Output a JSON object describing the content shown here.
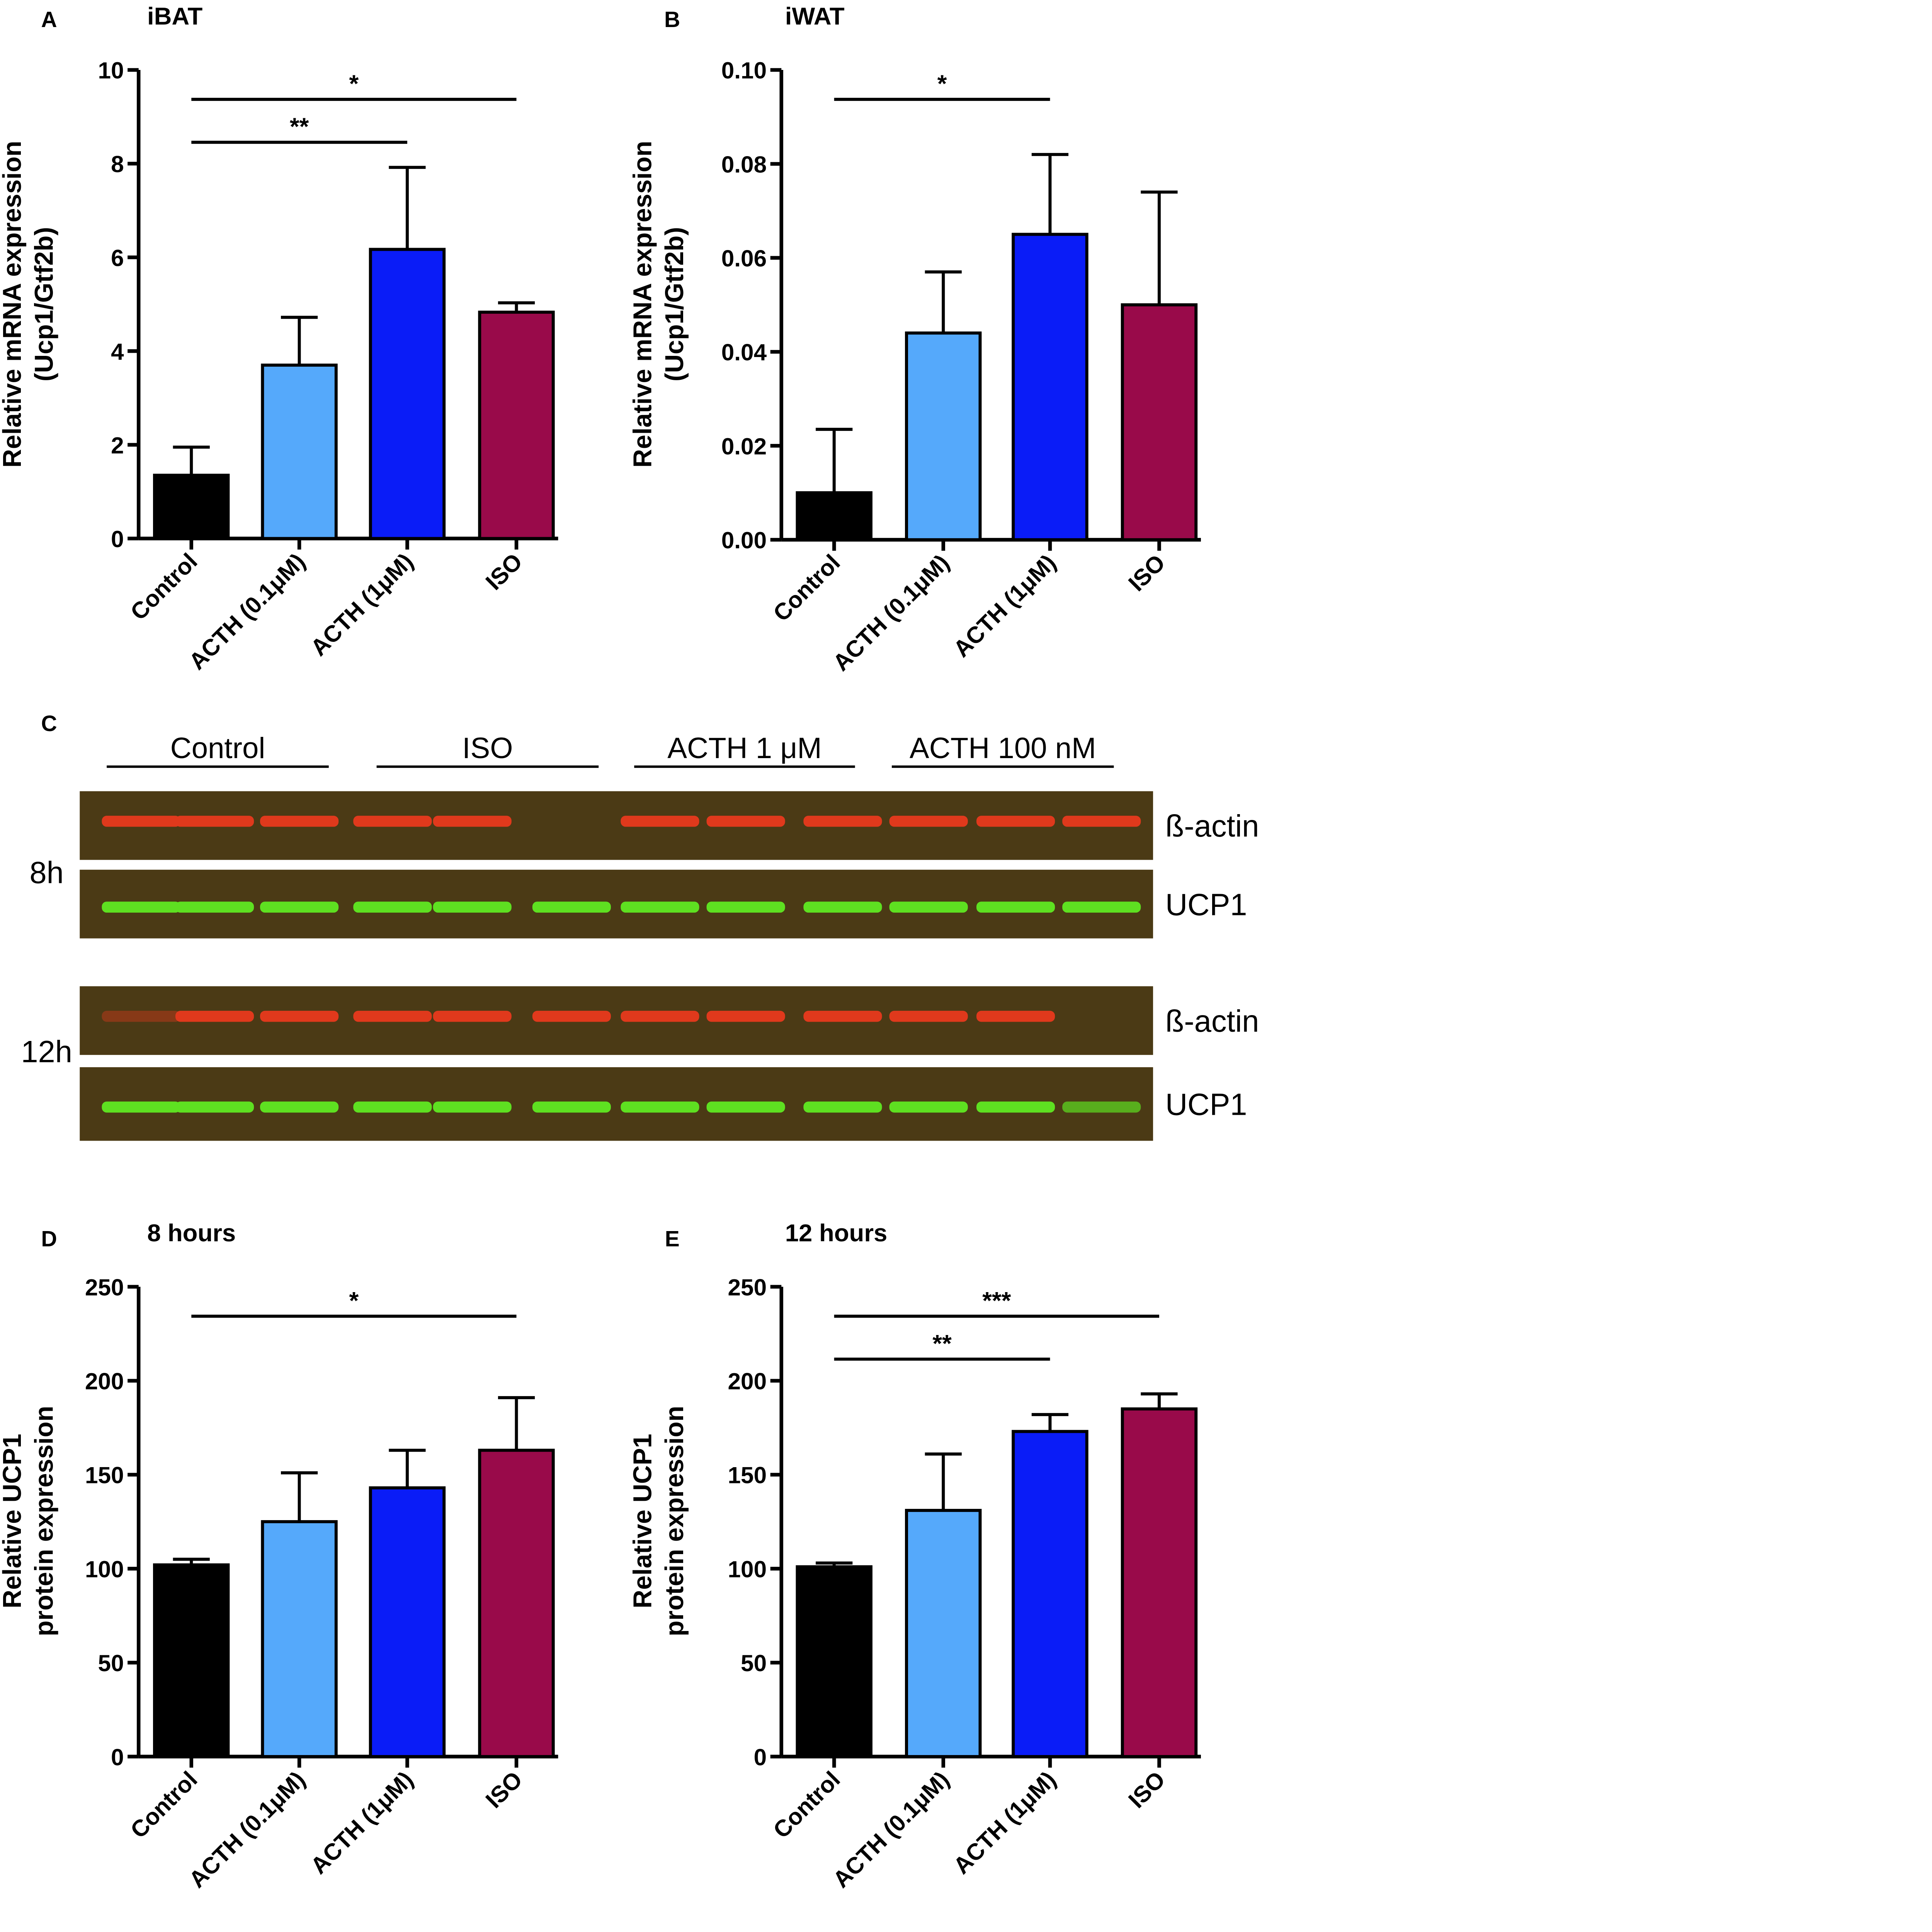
{
  "figure": {
    "panel_labels": [
      "A",
      "B",
      "C",
      "D",
      "E"
    ]
  },
  "colors": {
    "control": "#000000",
    "acth_low": "#55a9fb",
    "acth_high": "#0a1cf7",
    "iso": "#990a4a",
    "blot_red": "#e0391c",
    "blot_green": "#5ee021",
    "blot_bg": "#4b3a15"
  },
  "chart_data": [
    {
      "panel": "A",
      "type": "bar",
      "title": "iBAT",
      "xlabel": "",
      "ylabel": [
        "Relative mRNA expression",
        "(Ucp1/Gtf2b)"
      ],
      "categories": [
        "Control",
        "ACTH (0.1μM)",
        "ACTH (1μM)",
        "ISO"
      ],
      "values": [
        1.35,
        3.7,
        6.17,
        4.83
      ],
      "errors": [
        0.6,
        1.02,
        1.75,
        0.2
      ],
      "ylim": [
        0,
        10
      ],
      "yticks": [
        "0",
        "2",
        "4",
        "6",
        "8",
        "10"
      ],
      "significance": [
        {
          "from": 0,
          "to": 2,
          "label": "**"
        },
        {
          "from": 0,
          "to": 3,
          "label": "*"
        }
      ]
    },
    {
      "panel": "B",
      "type": "bar",
      "title": "iWAT",
      "xlabel": "",
      "ylabel": [
        "Relative mRNA expression",
        "(Ucp1/Gtf2b)"
      ],
      "categories": [
        "Control",
        "ACTH (0.1μM)",
        "ACTH (1μM)",
        "ISO"
      ],
      "values": [
        0.01,
        0.044,
        0.065,
        0.05
      ],
      "errors": [
        0.0135,
        0.013,
        0.017,
        0.024
      ],
      "ylim": [
        0,
        0.1
      ],
      "yticks": [
        "0.00",
        "0.02",
        "0.04",
        "0.06",
        "0.08",
        "0.10"
      ],
      "significance": [
        {
          "from": 0,
          "to": 2,
          "label": "*"
        }
      ]
    },
    {
      "panel": "D",
      "type": "bar",
      "title": "8 hours",
      "xlabel": "",
      "ylabel": [
        "Relative UCP1",
        "protein expression"
      ],
      "categories": [
        "Control",
        "ACTH (0.1μM)",
        "ACTH (1μM)",
        "ISO"
      ],
      "values": [
        102,
        125,
        143,
        163
      ],
      "errors": [
        3,
        26,
        20,
        28
      ],
      "ylim": [
        0,
        250
      ],
      "yticks": [
        "0",
        "50",
        "100",
        "150",
        "200",
        "250"
      ],
      "significance": [
        {
          "from": 0,
          "to": 3,
          "label": "*"
        }
      ]
    },
    {
      "panel": "E",
      "type": "bar",
      "title": "12 hours",
      "xlabel": "",
      "ylabel": [
        "Relative UCP1",
        "protein expression"
      ],
      "categories": [
        "Control",
        "ACTH (0.1μM)",
        "ACTH (1μM)",
        "ISO"
      ],
      "values": [
        101,
        131,
        173,
        185
      ],
      "errors": [
        2,
        30,
        9,
        8
      ],
      "ylim": [
        0,
        250
      ],
      "yticks": [
        "0",
        "50",
        "100",
        "150",
        "200",
        "250"
      ],
      "significance": [
        {
          "from": 0,
          "to": 2,
          "label": "**"
        },
        {
          "from": 0,
          "to": 3,
          "label": "***"
        }
      ]
    }
  ],
  "blot": {
    "groups": [
      "Control",
      "ISO",
      "ACTH 1 μM",
      "ACTH 100 nM"
    ],
    "timepoints": [
      {
        "label": "8h",
        "rows": [
          {
            "name": "ß-actin",
            "color": "red",
            "bands": [
              1,
              1,
              1,
              1,
              1,
              0,
              1,
              1,
              1,
              1,
              1,
              1
            ]
          },
          {
            "name": "UCP1",
            "color": "green",
            "bands": [
              1,
              1,
              1,
              1,
              1,
              1,
              1,
              1,
              1,
              1,
              1,
              1
            ]
          }
        ]
      },
      {
        "label": "12h",
        "rows": [
          {
            "name": "ß-actin",
            "color": "red",
            "bands": [
              0.2,
              1,
              1,
              1,
              1,
              1,
              1,
              1,
              1,
              1,
              1,
              0
            ]
          },
          {
            "name": "UCP1",
            "color": "green",
            "bands": [
              1,
              1,
              1,
              1,
              1,
              1,
              1,
              1,
              1,
              1,
              1,
              0.6
            ]
          }
        ]
      }
    ]
  }
}
